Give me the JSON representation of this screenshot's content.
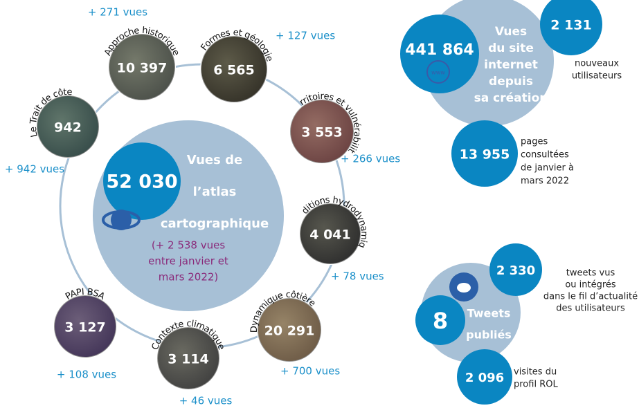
{
  "atlas": {
    "value": "52 030",
    "label_lines": [
      "Vues de",
      "l’atlas",
      "cartographique"
    ],
    "note_lines": [
      "(+ 2 538 vues",
      "entre janvier et",
      "mars 2022)"
    ]
  },
  "themes": [
    {
      "title": "Le Trait de côte",
      "value": "942",
      "delta": "+ 942 vues"
    },
    {
      "title": "Approche historique",
      "value": "10 397",
      "delta": "+ 271 vues"
    },
    {
      "title": "Formes et géologie",
      "value": "6 565",
      "delta": "+ 127 vues"
    },
    {
      "title": "Territoires et vulnérabilités",
      "value": "3 553",
      "delta": "+ 266 vues"
    },
    {
      "title": "Conditions hydrodynamiques",
      "value": "4 041",
      "delta": "+ 78 vues"
    },
    {
      "title": "Dynamique côtière",
      "value": "20 291",
      "delta": "+ 700 vues"
    },
    {
      "title": "Contexte climatique",
      "value": "3 114",
      "delta": "+ 46 vues"
    },
    {
      "title": "PAPI BSA",
      "value": "3 127",
      "delta": "+ 108 vues"
    }
  ],
  "site": {
    "value": "441 864",
    "icon": "www",
    "label_lines": [
      "Vues",
      "du site",
      "internet",
      "depuis",
      "sa création"
    ],
    "new_users": {
      "value": "2 131",
      "lines": [
        "nouveaux",
        "utilisateurs"
      ]
    },
    "pages": {
      "value": "13 955",
      "lines": [
        "pages",
        "consultées",
        "de janvier à",
        "mars 2022"
      ]
    }
  },
  "tweets": {
    "value": "8",
    "label_lines": [
      "Tweets",
      "publiés"
    ],
    "seen": {
      "value": "2 330",
      "lines": [
        "tweets vus",
        "ou intégrés",
        "dans le fil d’actualité",
        "des utilisateurs"
      ]
    },
    "visits": {
      "value": "2 096",
      "lines": [
        "visites du",
        "profil ROL"
      ]
    }
  }
}
